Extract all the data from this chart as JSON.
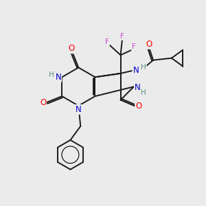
{
  "bg_color": "#ebebeb",
  "bond_color": "#1a1a1a",
  "atom_colors": {
    "N": "#0000cc",
    "O": "#ff0000",
    "F": "#cc44cc",
    "H": "#5a8a8a",
    "C": "#1a1a1a"
  }
}
